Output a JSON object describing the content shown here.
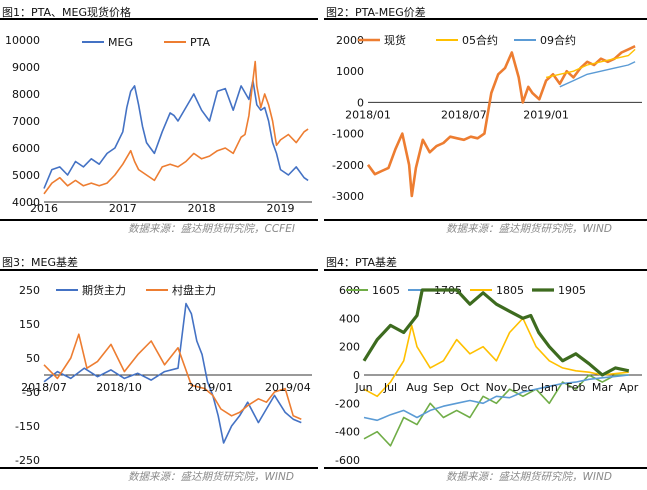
{
  "panels": [
    {
      "title": "图1：PTA、MEG现货价格",
      "source": "数据来源：盛达期货研究院，CCFEI"
    },
    {
      "title": "图2：PTA-MEG价差",
      "source": "数据来源：盛达期货研究院，WIND"
    },
    {
      "title": "图3：MEG基差",
      "source": ""
    },
    {
      "title": "图4：PTA基差",
      "source": ""
    }
  ],
  "footer_source_left": "数据来源：盛达期货研究院，WIND",
  "footer_source_right": "数据来源：盛达期货研究院，WIND",
  "chart_data": [
    {
      "type": "line",
      "title": "",
      "xlabel": "",
      "ylabel": "",
      "x_ticks": [
        "2016",
        "2017",
        "2018",
        "2019"
      ],
      "xlim": [
        2016.0,
        2019.4
      ],
      "ylim": [
        4000,
        10000
      ],
      "yticks": [
        4000,
        5000,
        6000,
        7000,
        8000,
        9000,
        10000
      ],
      "legend": "top-center",
      "grid": false,
      "series": [
        {
          "name": "MEG",
          "color": "#4472c4",
          "x": [
            2016.0,
            2016.1,
            2016.2,
            2016.3,
            2016.4,
            2016.5,
            2016.6,
            2016.7,
            2016.8,
            2016.9,
            2017.0,
            2017.05,
            2017.1,
            2017.15,
            2017.2,
            2017.25,
            2017.3,
            2017.35,
            2017.4,
            2017.5,
            2017.6,
            2017.65,
            2017.7,
            2017.8,
            2017.9,
            2018.0,
            2018.1,
            2018.2,
            2018.3,
            2018.4,
            2018.5,
            2018.6,
            2018.65,
            2018.7,
            2018.75,
            2018.8,
            2018.85,
            2018.9,
            2018.95,
            2019.0,
            2019.1,
            2019.2,
            2019.3,
            2019.35
          ],
          "y": [
            4500,
            5200,
            5300,
            5000,
            5500,
            5300,
            5600,
            5400,
            5800,
            6000,
            6600,
            7500,
            8100,
            8300,
            7600,
            6800,
            6200,
            6000,
            5800,
            6600,
            7300,
            7200,
            7000,
            7500,
            8000,
            7400,
            7000,
            8100,
            8200,
            7400,
            8300,
            7800,
            8500,
            7600,
            7400,
            7500,
            7000,
            6200,
            5800,
            5200,
            5000,
            5300,
            4900,
            4800
          ]
        },
        {
          "name": "PTA",
          "color": "#ed7d31",
          "x": [
            2016.0,
            2016.1,
            2016.2,
            2016.3,
            2016.4,
            2016.5,
            2016.6,
            2016.7,
            2016.8,
            2016.9,
            2017.0,
            2017.1,
            2017.15,
            2017.2,
            2017.3,
            2017.4,
            2017.5,
            2017.6,
            2017.7,
            2017.8,
            2017.9,
            2018.0,
            2018.1,
            2018.2,
            2018.3,
            2018.4,
            2018.5,
            2018.55,
            2018.6,
            2018.65,
            2018.68,
            2018.7,
            2018.75,
            2018.8,
            2018.85,
            2018.9,
            2018.95,
            2019.0,
            2019.1,
            2019.2,
            2019.3,
            2019.35
          ],
          "y": [
            4300,
            4700,
            4900,
            4600,
            4800,
            4600,
            4700,
            4600,
            4700,
            5000,
            5400,
            5900,
            5500,
            5200,
            5000,
            4800,
            5300,
            5400,
            5300,
            5500,
            5800,
            5600,
            5700,
            5900,
            6000,
            5800,
            6400,
            6500,
            7200,
            8500,
            9200,
            8300,
            7500,
            8000,
            7600,
            7000,
            6100,
            6300,
            6500,
            6200,
            6600,
            6700
          ]
        }
      ]
    },
    {
      "type": "line",
      "title": "",
      "xlabel": "",
      "ylabel": "",
      "x_ticks": [
        "2018/01",
        "2018/07",
        "2019/01"
      ],
      "xlim": [
        0,
        20
      ],
      "ylim": [
        -3000,
        2000
      ],
      "yticks": [
        -3000,
        -2000,
        -1000,
        0,
        1000,
        2000
      ],
      "legend": "top",
      "grid": false,
      "series": [
        {
          "name": "现货",
          "color": "#ed7d31",
          "x": [
            0,
            0.5,
            1,
            1.5,
            2,
            2.5,
            3,
            3.2,
            3.5,
            4,
            4.5,
            5,
            5.5,
            6,
            6.5,
            7,
            7.5,
            8,
            8.5,
            9,
            9.5,
            10,
            10.5,
            11,
            11.3,
            11.7,
            12,
            12.5,
            13,
            13.5,
            14,
            14.5,
            15,
            15.5,
            16,
            16.5,
            17,
            17.5,
            18,
            18.5,
            19,
            19.5
          ],
          "y": [
            -2000,
            -2300,
            -2200,
            -2100,
            -1500,
            -1000,
            -2000,
            -3000,
            -2100,
            -1200,
            -1600,
            -1400,
            -1300,
            -1100,
            -1150,
            -1200,
            -1100,
            -1150,
            -1000,
            300,
            900,
            1100,
            1600,
            800,
            0,
            500,
            300,
            100,
            700,
            900,
            600,
            1000,
            800,
            1100,
            1300,
            1200,
            1400,
            1300,
            1400,
            1600,
            1700,
            1800
          ]
        },
        {
          "name": "05合约",
          "color": "#ffc000",
          "x": [
            13,
            14,
            15,
            16,
            17,
            18,
            19,
            19.5
          ],
          "y": [
            800,
            900,
            1000,
            1200,
            1300,
            1400,
            1500,
            1700
          ]
        },
        {
          "name": "09合约",
          "color": "#5b9bd5",
          "x": [
            14,
            15,
            16,
            17,
            18,
            19,
            19.5
          ],
          "y": [
            500,
            700,
            900,
            1000,
            1100,
            1200,
            1300
          ]
        }
      ]
    },
    {
      "type": "line",
      "title": "",
      "xlabel": "",
      "ylabel": "",
      "x_ticks": [
        "2018/07",
        "2018/10",
        "2019/01",
        "2019/04"
      ],
      "xlim": [
        0,
        10
      ],
      "ylim": [
        -250,
        250
      ],
      "yticks": [
        -250,
        -150,
        -50,
        50,
        150,
        250
      ],
      "legend": "top",
      "grid": false,
      "series": [
        {
          "name": "期货主力",
          "color": "#4472c4",
          "x": [
            0,
            0.5,
            1,
            1.5,
            2,
            2.5,
            3,
            3.5,
            4,
            4.5,
            5,
            5.3,
            5.5,
            5.7,
            5.9,
            6.1,
            6.3,
            6.5,
            6.7,
            7,
            7.3,
            7.6,
            8,
            8.3,
            8.6,
            9,
            9.3,
            9.6
          ],
          "y": [
            -20,
            10,
            -10,
            20,
            -5,
            15,
            -10,
            5,
            -15,
            10,
            20,
            210,
            180,
            100,
            60,
            -20,
            -60,
            -120,
            -200,
            -150,
            -120,
            -80,
            -140,
            -100,
            -60,
            -110,
            -130,
            -140
          ]
        },
        {
          "name": "村盘主力",
          "color": "#ed7d31",
          "x": [
            0,
            0.5,
            1,
            1.3,
            1.6,
            2,
            2.5,
            3,
            3.5,
            4,
            4.5,
            5,
            5.5,
            6,
            6.3,
            6.6,
            7,
            7.3,
            7.6,
            8,
            8.3,
            8.6,
            9,
            9.3,
            9.6
          ],
          "y": [
            30,
            -10,
            50,
            120,
            20,
            40,
            90,
            10,
            60,
            100,
            30,
            80,
            -30,
            -40,
            -60,
            -100,
            -120,
            -110,
            -90,
            -70,
            -80,
            -50,
            -40,
            -120,
            -130
          ]
        }
      ]
    },
    {
      "type": "line",
      "title": "",
      "xlabel": "",
      "ylabel": "",
      "x_ticks": [
        "Jun",
        "Jul",
        "Aug",
        "Sep",
        "Oct",
        "Nov",
        "Dec",
        "Jan",
        "Feb",
        "Mar",
        "Apr"
      ],
      "xlim": [
        0,
        10.5
      ],
      "ylim": [
        -600,
        600
      ],
      "yticks": [
        -600,
        -400,
        -200,
        0,
        200,
        400,
        600
      ],
      "legend": "top",
      "grid": false,
      "series": [
        {
          "name": "1605",
          "color": "#70ad47",
          "x": [
            0,
            0.5,
            1,
            1.5,
            2,
            2.5,
            3,
            3.5,
            4,
            4.5,
            5,
            5.5,
            6,
            6.5,
            7,
            7.5,
            8,
            8.5,
            9,
            9.5,
            10
          ],
          "y": [
            -450,
            -400,
            -500,
            -300,
            -350,
            -200,
            -300,
            -250,
            -300,
            -150,
            -200,
            -100,
            -150,
            -100,
            -200,
            -50,
            -100,
            0,
            -50,
            0,
            0
          ]
        },
        {
          "name": "1705",
          "color": "#5b9bd5",
          "x": [
            0,
            0.5,
            1,
            1.5,
            2,
            2.5,
            3,
            3.5,
            4,
            4.5,
            5,
            5.5,
            6,
            6.5,
            7,
            7.5,
            8,
            8.5,
            9,
            9.5,
            10
          ],
          "y": [
            -300,
            -320,
            -280,
            -250,
            -300,
            -250,
            -220,
            -200,
            -180,
            -200,
            -150,
            -160,
            -120,
            -100,
            -80,
            -60,
            -50,
            -30,
            -20,
            -10,
            0
          ]
        },
        {
          "name": "1805",
          "color": "#ffc000",
          "x": [
            0,
            0.5,
            1,
            1.5,
            1.8,
            2,
            2.5,
            3,
            3.5,
            4,
            4.5,
            5,
            5.5,
            6,
            6.5,
            7,
            7.5,
            8,
            8.5,
            9,
            9.5,
            10
          ],
          "y": [
            -100,
            -150,
            -50,
            100,
            350,
            200,
            50,
            100,
            250,
            150,
            200,
            100,
            300,
            400,
            200,
            100,
            50,
            30,
            20,
            0,
            10,
            20
          ]
        },
        {
          "name": "1905",
          "color": "#3d6b1f",
          "x": [
            0,
            0.5,
            1,
            1.5,
            2,
            2.2,
            2.5,
            3,
            3.5,
            4,
            4.5,
            5,
            5.5,
            6,
            6.3,
            6.6,
            7,
            7.5,
            8,
            8.5,
            9,
            9.5,
            10
          ],
          "y": [
            100,
            250,
            350,
            300,
            420,
            600,
            600,
            600,
            600,
            500,
            580,
            500,
            450,
            400,
            420,
            300,
            200,
            100,
            150,
            80,
            0,
            50,
            30
          ]
        }
      ]
    }
  ]
}
